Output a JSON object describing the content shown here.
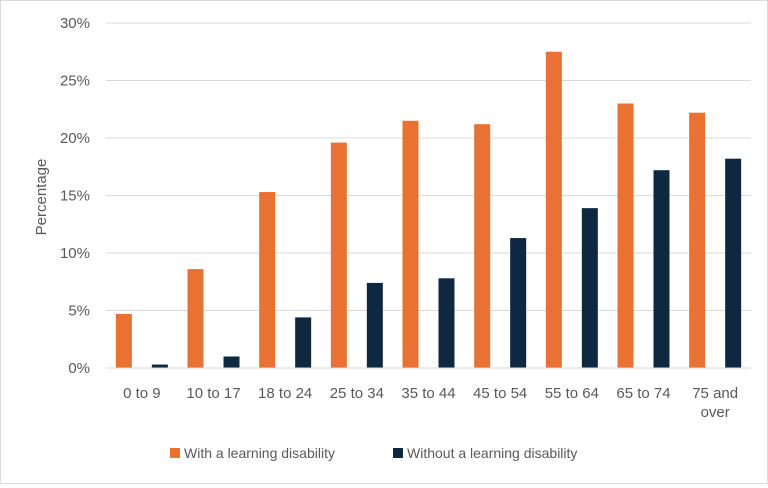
{
  "chart_data": {
    "type": "bar",
    "categories": [
      "0 to 9",
      "10 to 17",
      "18 to 24",
      "25 to 34",
      "35 to 44",
      "45 to 54",
      "55 to 64",
      "65 to 74",
      "75 and over"
    ],
    "category_lines": [
      [
        "0 to 9"
      ],
      [
        "10 to 17"
      ],
      [
        "18 to 24"
      ],
      [
        "25 to 34"
      ],
      [
        "35 to 44"
      ],
      [
        "45 to 54"
      ],
      [
        "55 to 64"
      ],
      [
        "65 to 74"
      ],
      [
        "75 and",
        "over"
      ]
    ],
    "series": [
      {
        "name": "With a learning disability",
        "color": "#e97132",
        "values": [
          4.7,
          8.6,
          15.3,
          19.6,
          21.5,
          21.2,
          27.5,
          23.0,
          22.2
        ]
      },
      {
        "name": "Without a learning disability",
        "color": "#0e2841",
        "values": [
          0.3,
          1.0,
          4.4,
          7.4,
          7.8,
          11.3,
          13.9,
          17.2,
          18.2
        ]
      }
    ],
    "ylabel": "Percentage",
    "ylim": [
      0,
      30
    ],
    "yticks": [
      "0%",
      "5%",
      "10%",
      "15%",
      "20%",
      "25%",
      "30%"
    ],
    "grid": true,
    "legend_position": "bottom"
  }
}
